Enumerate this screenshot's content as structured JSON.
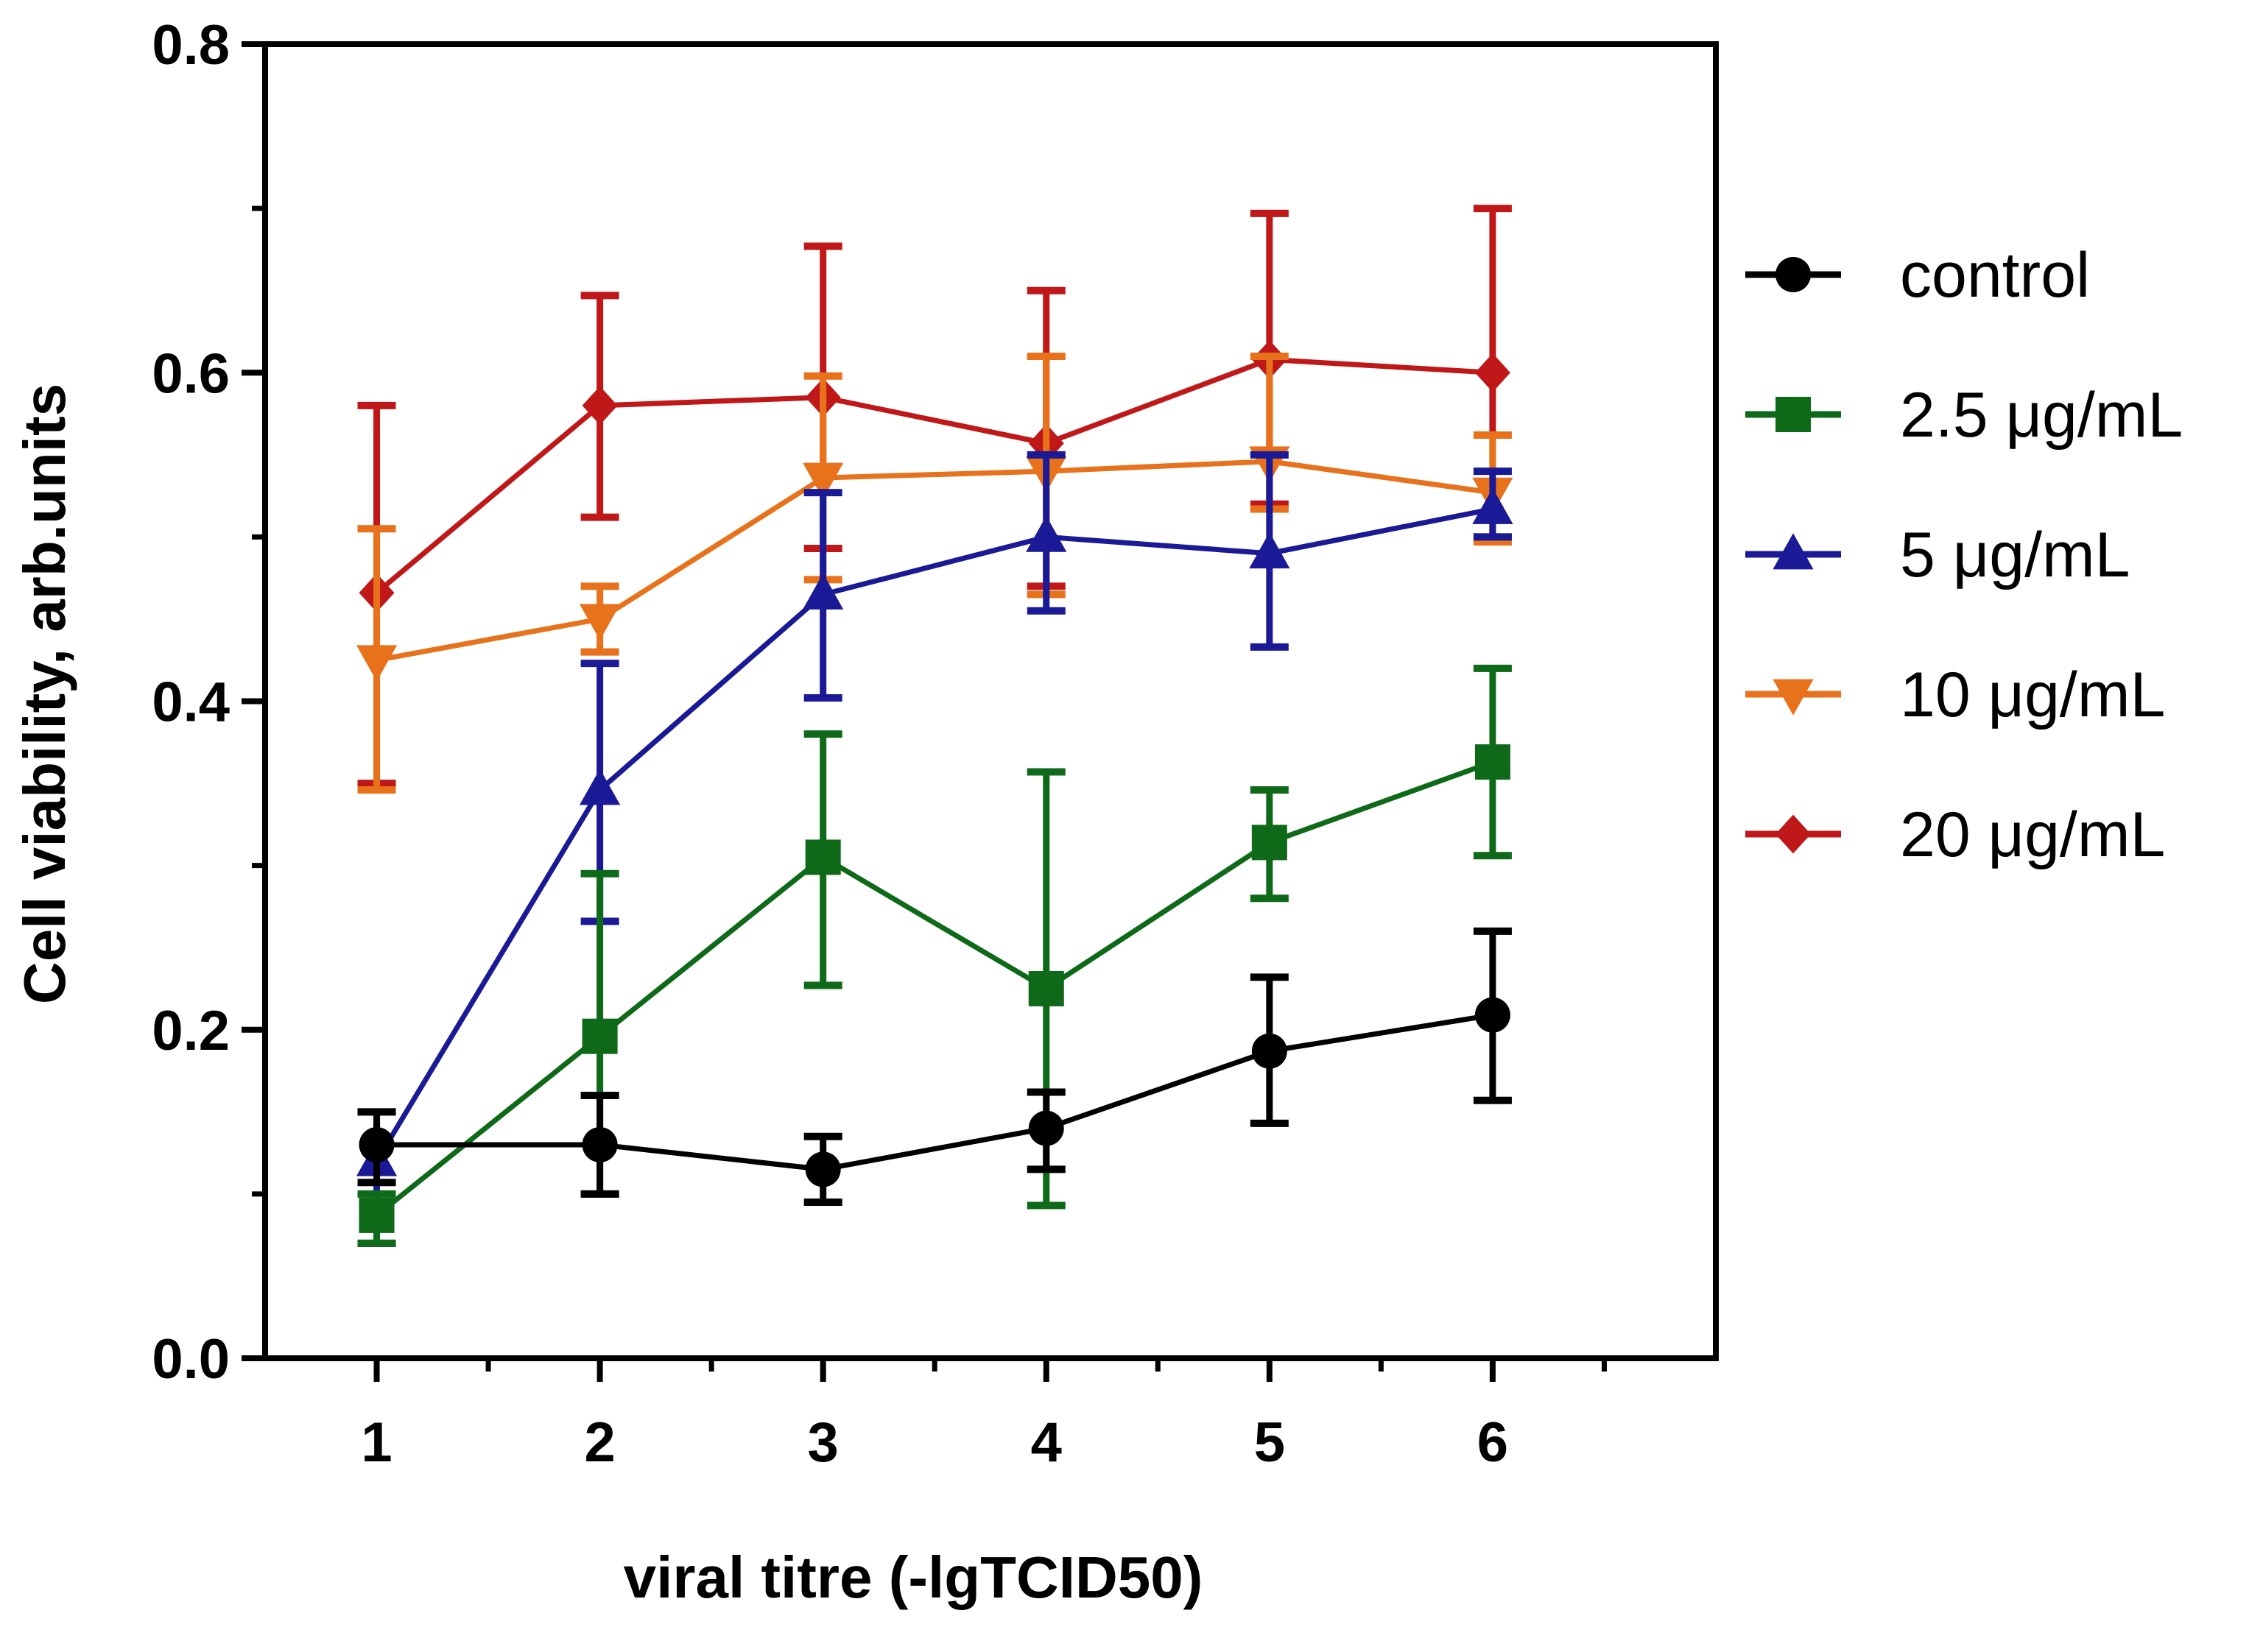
{
  "chart_data": {
    "type": "line",
    "title": "",
    "xlabel": "viral titre (-lgTCID50)",
    "ylabel": "Cell viability, arb.units",
    "x": [
      1,
      2,
      3,
      4,
      5,
      6
    ],
    "xlim": [
      0.5,
      7
    ],
    "ylim": [
      0,
      0.8
    ],
    "x_ticks": [
      "1",
      "2",
      "3",
      "4",
      "5",
      "6"
    ],
    "y_ticks": [
      "0.0",
      "0.2",
      "0.4",
      "0.6",
      "0.8"
    ],
    "y_tick_values": [
      0,
      0.2,
      0.4,
      0.6,
      0.8
    ],
    "grid": false,
    "legend_position": "right",
    "series": [
      {
        "name": "control",
        "color": "#000000",
        "marker": "circle",
        "values": [
          0.13,
          0.13,
          0.115,
          0.14,
          0.187,
          0.209
        ],
        "err_low": [
          0.107,
          0.1,
          0.095,
          0.115,
          0.143,
          0.157
        ],
        "err_high": [
          0.15,
          0.16,
          0.135,
          0.162,
          0.232,
          0.26
        ]
      },
      {
        "name": "2.5 μg/mL",
        "color": "#0e6a18",
        "marker": "square",
        "values": [
          0.087,
          0.196,
          0.305,
          0.225,
          0.314,
          0.363
        ],
        "err_low": [
          0.07,
          0.1,
          0.227,
          0.093,
          0.28,
          0.306
        ],
        "err_high": [
          0.1,
          0.295,
          0.38,
          0.357,
          0.346,
          0.42
        ]
      },
      {
        "name": "5 μg/mL",
        "color": "#1a1a96",
        "marker": "triangle-up",
        "values": [
          0.12,
          0.346,
          0.465,
          0.5,
          0.49,
          0.517
        ],
        "err_low": [
          0.07,
          0.266,
          0.402,
          0.455,
          0.433,
          0.5
        ],
        "err_high": [
          0.15,
          0.423,
          0.527,
          0.55,
          0.55,
          0.54
        ]
      },
      {
        "name": "10 μg/mL",
        "color": "#e8721c",
        "marker": "triangle-down",
        "values": [
          0.425,
          0.45,
          0.536,
          0.54,
          0.546,
          0.527
        ],
        "err_low": [
          0.346,
          0.43,
          0.474,
          0.465,
          0.517,
          0.497
        ],
        "err_high": [
          0.505,
          0.47,
          0.598,
          0.61,
          0.61,
          0.562
        ]
      },
      {
        "name": "20 μg/mL",
        "color": "#c01818",
        "marker": "diamond",
        "values": [
          0.466,
          0.58,
          0.585,
          0.557,
          0.608,
          0.6
        ],
        "err_low": [
          0.35,
          0.512,
          0.493,
          0.47,
          0.52,
          0.5
        ],
        "err_high": [
          0.58,
          0.647,
          0.677,
          0.65,
          0.697,
          0.7
        ]
      }
    ]
  }
}
